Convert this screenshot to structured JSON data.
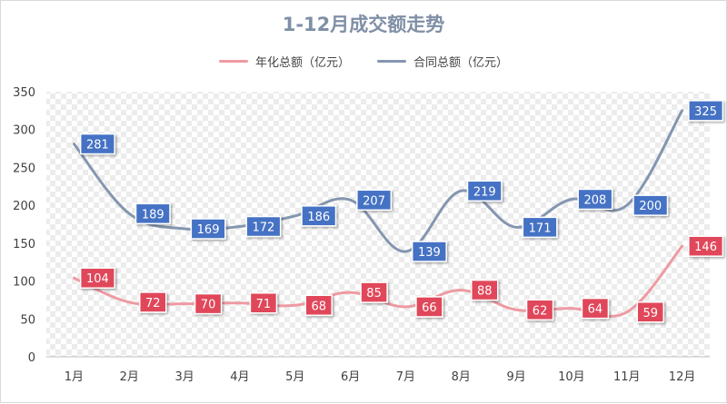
{
  "chart_data": {
    "type": "line",
    "title": "1-12月成交额走势",
    "categories": [
      "1月",
      "2月",
      "3月",
      "4月",
      "5月",
      "6月",
      "7月",
      "8月",
      "9月",
      "10月",
      "11月",
      "12月"
    ],
    "series": [
      {
        "name": "年化总额（亿元）",
        "values": [
          104,
          72,
          70,
          71,
          68,
          85,
          66,
          88,
          62,
          64,
          59,
          146
        ],
        "color": "#ee9aa2",
        "label_color": "#e0475a"
      },
      {
        "name": "合同总额（亿元）",
        "values": [
          281,
          189,
          169,
          172,
          186,
          207,
          139,
          219,
          171,
          208,
          200,
          325
        ],
        "color": "#8496b0",
        "label_color": "#4472c4"
      }
    ],
    "ylim": [
      0,
      350
    ],
    "yticks": [
      0,
      50,
      100,
      150,
      200,
      250,
      300,
      350
    ],
    "legend_position": "top-center",
    "plot_background": "patterned light gray",
    "xlabel": "",
    "ylabel": ""
  }
}
